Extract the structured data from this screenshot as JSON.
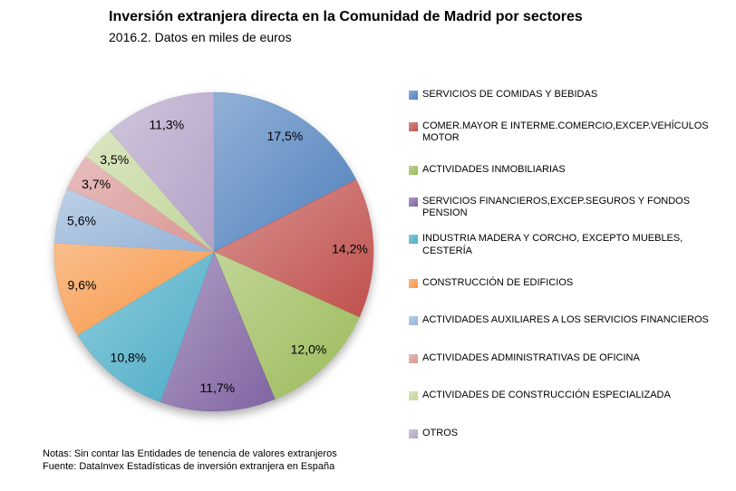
{
  "chart_data": {
    "type": "pie",
    "title": "Inversión extranjera directa en la Comunidad de Madrid por sectores",
    "subtitle": "2016.2. Datos en miles de euros",
    "unit": "miles de euros",
    "start_angle_deg": 0,
    "direction": "clockwise",
    "legend_position": "right",
    "categories": [
      "SERVICIOS DE COMIDAS Y BEBIDAS",
      "COMER.MAYOR E INTERME.COMERCIO,EXCEP.VEHÍCULOS MOTOR",
      "ACTIVIDADES INMOBILIARIAS",
      "SERVICIOS FINANCIEROS,EXCEP.SEGUROS Y FONDOS PENSION",
      "INDUSTRIA MADERA Y CORCHO, EXCEPTO MUEBLES, CESTERÍA",
      "CONSTRUCCIÓN DE EDIFICIOS",
      "ACTIVIDADES AUXILIARES A LOS SERVICIOS FINANCIEROS",
      "ACTIVIDADES ADMINISTRATIVAS DE OFICINA",
      "ACTIVIDADES DE CONSTRUCCIÓN ESPECIALIZADA",
      "OTROS"
    ],
    "values": [
      17.5,
      14.2,
      12.0,
      11.7,
      10.8,
      9.6,
      5.6,
      3.7,
      3.5,
      11.3
    ],
    "value_labels": [
      "17,5%",
      "14,2%",
      "12,0%",
      "11,7%",
      "10,8%",
      "9,6%",
      "5,6%",
      "3,7%",
      "3,5%",
      "11,3%"
    ],
    "colors": [
      "#4F81BD",
      "#C0504D",
      "#9BBB59",
      "#8064A2",
      "#4BACC6",
      "#F79646",
      "#95B3D7",
      "#D99694",
      "#C3D69B",
      "#B3A2C7"
    ]
  },
  "legend": {
    "items": [
      {
        "label": "SERVICIOS DE COMIDAS Y BEBIDAS"
      },
      {
        "label": "COMER.MAYOR E INTERME.COMERCIO,EXCEP.VEHÍCULOS\nMOTOR"
      },
      {
        "label": "ACTIVIDADES INMOBILIARIAS"
      },
      {
        "label": "SERVICIOS FINANCIEROS,EXCEP.SEGUROS Y FONDOS\nPENSION"
      },
      {
        "label": "INDUSTRIA MADERA Y CORCHO, EXCEPTO MUEBLES,\nCESTERÍA"
      },
      {
        "label": "CONSTRUCCIÓN DE EDIFICIOS"
      },
      {
        "label": "ACTIVIDADES AUXILIARES A LOS SERVICIOS FINANCIEROS"
      },
      {
        "label": "ACTIVIDADES ADMINISTRATIVAS DE OFICINA"
      },
      {
        "label": "ACTIVIDADES DE CONSTRUCCIÓN ESPECIALIZADA"
      },
      {
        "label": "OTROS"
      }
    ]
  },
  "notes": {
    "line1": "Notas: Sin contar las Entidades de tenencia de valores extranjeros",
    "line2": "Fuente: DataInvex Estadísticas de inversión extranjera en España"
  }
}
